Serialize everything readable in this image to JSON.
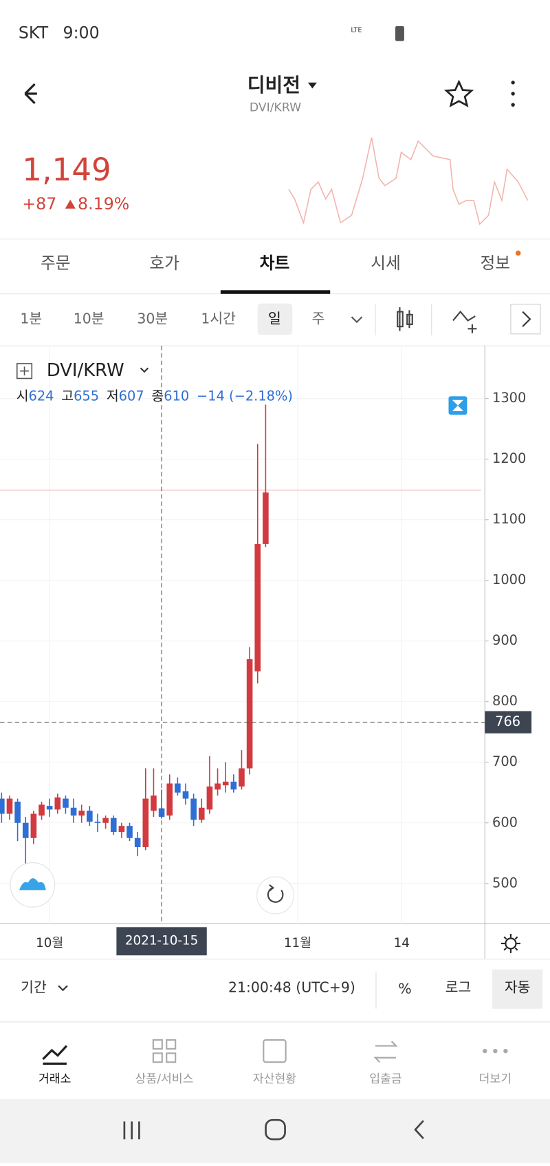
{
  "status": {
    "carrier": "SKT",
    "time": "9:00",
    "network": "LTE"
  },
  "header": {
    "title": "디비전",
    "subtitle": "DVI/KRW",
    "price": {
      "value": 1149,
      "label": "1,149"
    },
    "change": "+87",
    "change_pct": "8.19%"
  },
  "tabs": [
    "주문",
    "호가",
    "차트",
    "시세",
    "정보"
  ],
  "intervals": [
    "1분",
    "10분",
    "30분",
    "1시간",
    "일",
    "주"
  ],
  "chart_data": {
    "type": "candlestick",
    "symbol": "DVI/KRW",
    "ohlc": [
      {
        "label": "시",
        "value": "624"
      },
      {
        "label": "고",
        "value": "655"
      },
      {
        "label": "저",
        "value": "607"
      },
      {
        "label": "종",
        "value": "610"
      }
    ],
    "ohlc_change": "−14 (−2.18%)",
    "x": [
      1,
      2,
      3,
      4,
      5,
      6,
      7,
      8,
      9,
      10,
      11,
      12,
      13,
      14,
      15,
      16,
      17,
      18,
      19,
      20,
      21,
      22,
      23,
      24,
      25,
      26,
      27,
      28,
      29,
      30,
      31,
      32,
      33,
      34
    ],
    "open": [
      640,
      615,
      635,
      600,
      575,
      612,
      628,
      622,
      640,
      625,
      612,
      620,
      602,
      600,
      608,
      585,
      595,
      575,
      560,
      620,
      624,
      612,
      665,
      652,
      640,
      605,
      622,
      655,
      662,
      668,
      660,
      690,
      850,
      1060
    ],
    "high": [
      650,
      645,
      640,
      610,
      620,
      635,
      640,
      648,
      645,
      640,
      630,
      628,
      615,
      612,
      612,
      600,
      600,
      585,
      690,
      690,
      655,
      680,
      675,
      665,
      648,
      640,
      710,
      690,
      700,
      680,
      720,
      890,
      1225,
      1290
    ],
    "low": [
      600,
      605,
      570,
      530,
      565,
      605,
      610,
      615,
      615,
      600,
      600,
      595,
      585,
      590,
      580,
      575,
      570,
      545,
      555,
      610,
      607,
      605,
      645,
      630,
      595,
      600,
      615,
      645,
      650,
      650,
      655,
      680,
      830,
      1055
    ],
    "close": [
      615,
      640,
      600,
      575,
      615,
      630,
      622,
      642,
      625,
      612,
      620,
      602,
      600,
      608,
      585,
      595,
      575,
      560,
      640,
      645,
      610,
      665,
      650,
      640,
      605,
      625,
      660,
      665,
      668,
      655,
      690,
      870,
      1060,
      1145
    ],
    "up_color": "#d13b40",
    "down_color": "#2f6fd4",
    "xlim": [
      0.8,
      61.4
    ],
    "ylim": [
      434,
      1387
    ],
    "yticks": [
      500,
      600,
      700,
      800,
      900,
      1000,
      1100,
      1200,
      1300
    ],
    "xticks": [
      {
        "value": 7,
        "label": "10월"
      },
      {
        "value": 38,
        "label": "11월"
      },
      {
        "value": 51,
        "label": "14"
      }
    ],
    "crosshair_y": 766,
    "crosshair_x": 21,
    "crosshair_x_label": "2021-10-15"
  },
  "toolbar": {
    "period": "기간",
    "clock": "21:00:48 (UTC+9)",
    "percent": "%",
    "log": "로그",
    "auto": "자동"
  },
  "nav": [
    "거래소",
    "상품/서비스",
    "자산현황",
    "입출금",
    "더보기"
  ]
}
